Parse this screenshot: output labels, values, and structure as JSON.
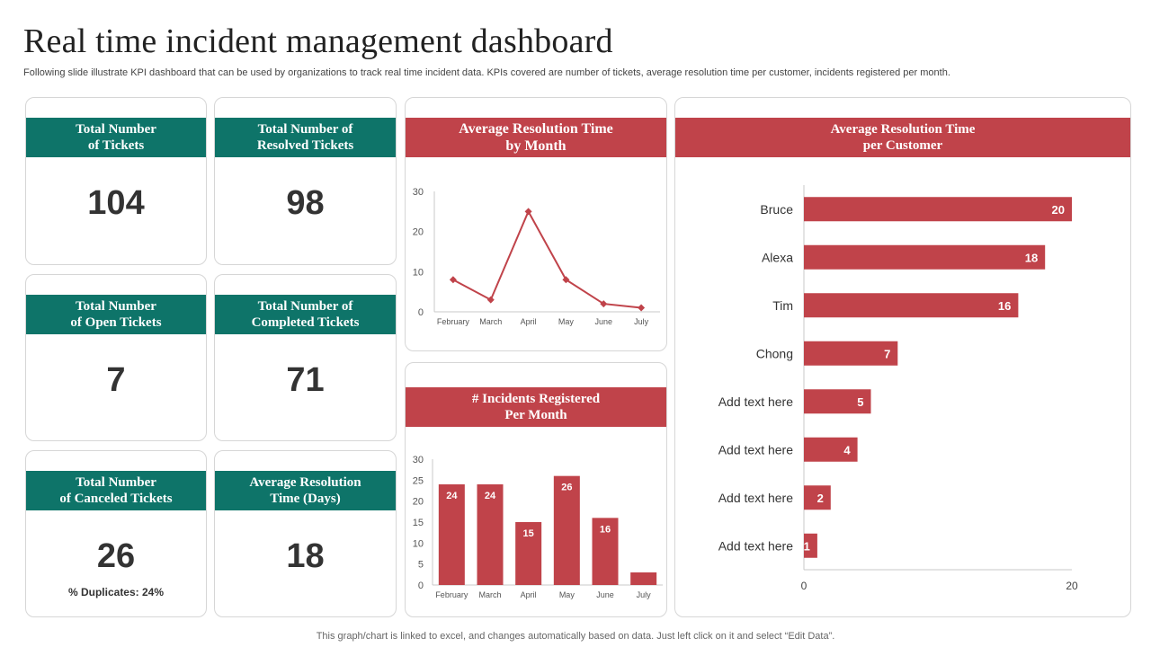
{
  "header": {
    "title": "Real time incident management dashboard",
    "subtitle": "Following slide illustrate KPI dashboard that can be used by organizations to track real time incident data. KPIs covered are number of tickets, average resolution time per customer, incidents registered per month."
  },
  "kpis": {
    "total_tickets": {
      "label_line1": "Total Number",
      "label_line2": "of Tickets",
      "value": "104"
    },
    "resolved_tickets": {
      "label_line1": "Total Number of",
      "label_line2": "Resolved Tickets",
      "value": "98"
    },
    "open_tickets": {
      "label_line1": "Total Number",
      "label_line2": "of Open Tickets",
      "value": "7"
    },
    "completed_tickets": {
      "label_line1": "Total Number of",
      "label_line2": "Completed Tickets",
      "value": "71"
    },
    "canceled_tickets": {
      "label_line1": "Total Number",
      "label_line2": "of Canceled Tickets",
      "value": "26",
      "note": "% Duplicates: 24%"
    },
    "avg_resolution_days": {
      "label_line1": "Average Resolution",
      "label_line2": "Time (Days)",
      "value": "18"
    }
  },
  "charts": {
    "resolution_by_month": {
      "title_line1": "Average Resolution Time",
      "title_line2": "by Month"
    },
    "incidents_per_month": {
      "title_line1": "# Incidents Registered",
      "title_line2": "Per Month"
    },
    "resolution_per_customer": {
      "title_line1": "Average Resolution Time",
      "title_line2": "per Customer"
    }
  },
  "chart_data": [
    {
      "type": "line",
      "title": "Average Resolution Time by Month",
      "categories": [
        "February",
        "March",
        "April",
        "May",
        "June",
        "July"
      ],
      "values": [
        8,
        3,
        25,
        8,
        2,
        1
      ],
      "ylim": [
        0,
        30
      ],
      "yticks": [
        0,
        10,
        20,
        30
      ],
      "color": "#c0434a"
    },
    {
      "type": "bar",
      "title": "# Incidents Registered Per Month",
      "categories": [
        "February",
        "March",
        "April",
        "May",
        "June",
        "July"
      ],
      "values": [
        24,
        24,
        15,
        26,
        16,
        3
      ],
      "labels": [
        "24",
        "24",
        "15",
        "26",
        "16",
        ""
      ],
      "ylim": [
        0,
        30
      ],
      "yticks": [
        0,
        5,
        10,
        15,
        20,
        25,
        30
      ],
      "color": "#c0434a"
    },
    {
      "type": "bar",
      "orientation": "horizontal",
      "title": "Average Resolution Time per Customer",
      "categories": [
        "Bruce",
        "Alexa",
        "Tim",
        "Chong",
        "Add text here",
        "Add text here",
        "Add text here",
        "Add text here"
      ],
      "values": [
        20,
        18,
        16,
        7,
        5,
        4,
        2,
        1
      ],
      "xlim": [
        0,
        20
      ],
      "xticks": [
        0,
        20
      ],
      "color": "#c0434a"
    }
  ],
  "footer": {
    "note": "This graph/chart is linked to excel,  and changes automatically based on data. Just left click on it and select “Edit Data”."
  }
}
